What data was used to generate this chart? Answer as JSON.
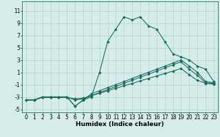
{
  "xlabel": "Humidex (Indice chaleur)",
  "ylabel": "",
  "background_color": "#d6ecea",
  "grid_color": "#b0d4d0",
  "line_color": "#1a6b5a",
  "xlim": [
    -0.5,
    23.5
  ],
  "ylim": [
    -5.5,
    12.5
  ],
  "yticks": [
    -5,
    -3,
    -1,
    1,
    3,
    5,
    7,
    9,
    11
  ],
  "xticks": [
    0,
    1,
    2,
    3,
    4,
    5,
    6,
    7,
    8,
    9,
    10,
    11,
    12,
    13,
    14,
    15,
    16,
    17,
    18,
    19,
    20,
    21,
    22,
    23
  ],
  "lines": [
    {
      "x": [
        0,
        1,
        2,
        3,
        4,
        5,
        6,
        7,
        8,
        9,
        10,
        11,
        12,
        13,
        14,
        15,
        16,
        17,
        18,
        19,
        20,
        21,
        22,
        23
      ],
      "y": [
        -3.5,
        -3.5,
        -3,
        -3,
        -3,
        -3,
        -4.5,
        -3.5,
        -3,
        1,
        6,
        8,
        10,
        9.5,
        10,
        8.5,
        8,
        6,
        4,
        3.5,
        3,
        2,
        1.5,
        -0.5
      ]
    },
    {
      "x": [
        0,
        1,
        2,
        3,
        4,
        5,
        6,
        7,
        8,
        9,
        10,
        11,
        12,
        13,
        14,
        15,
        16,
        17,
        18,
        19,
        20,
        21,
        22,
        23
      ],
      "y": [
        -3.5,
        -3.5,
        -3,
        -3,
        -3,
        -3,
        -4.5,
        -3.5,
        -2.5,
        -2,
        -1.5,
        -1,
        -0.5,
        0,
        0.5,
        1,
        1.5,
        2,
        2.5,
        3,
        2,
        1,
        -0.5,
        -0.7
      ]
    },
    {
      "x": [
        0,
        1,
        2,
        3,
        4,
        5,
        6,
        7,
        8,
        9,
        10,
        11,
        12,
        13,
        14,
        15,
        16,
        17,
        18,
        19,
        20,
        21,
        22,
        23
      ],
      "y": [
        -3.5,
        -3.5,
        -3,
        -3,
        -3,
        -3,
        -3.5,
        -3.3,
        -2.8,
        -2.3,
        -1.8,
        -1.3,
        -0.8,
        -0.3,
        0.2,
        0.7,
        1.2,
        1.7,
        2.2,
        2.7,
        1.5,
        0.5,
        -0.7,
        -0.8
      ]
    },
    {
      "x": [
        0,
        1,
        2,
        3,
        4,
        5,
        6,
        7,
        8,
        9,
        10,
        11,
        12,
        13,
        14,
        15,
        16,
        17,
        18,
        19,
        20,
        21,
        22,
        23
      ],
      "y": [
        -3.5,
        -3.5,
        -3.1,
        -3.1,
        -3.1,
        -3.1,
        -3.3,
        -3.2,
        -2.8,
        -2.4,
        -2.0,
        -1.6,
        -1.2,
        -0.8,
        -0.4,
        0.0,
        0.4,
        0.8,
        1.2,
        1.6,
        0.6,
        -0.3,
        -0.8,
        -0.9
      ]
    }
  ],
  "marker": "D",
  "markersize": 1.8,
  "linewidth": 0.8,
  "label_fontsize": 6.5,
  "tick_fontsize": 5.5
}
